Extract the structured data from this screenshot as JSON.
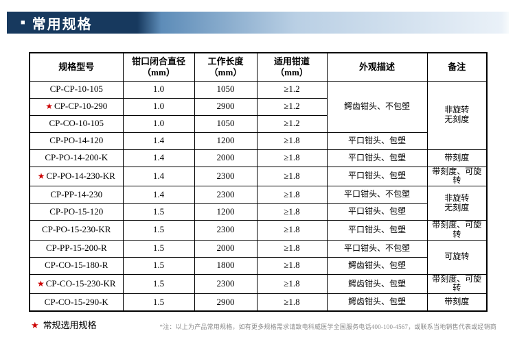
{
  "header": {
    "bullet": "■",
    "title": "常用规格"
  },
  "table": {
    "headers": [
      {
        "lines": [
          "规格型号"
        ]
      },
      {
        "lines": [
          "钳口闭合直径",
          "（mm）"
        ]
      },
      {
        "lines": [
          "工作长度",
          "（mm）"
        ]
      },
      {
        "lines": [
          "适用钳道",
          "（mm）"
        ]
      },
      {
        "lines": [
          "外观描述"
        ]
      },
      {
        "lines": [
          "备注"
        ]
      }
    ],
    "rows": [
      {
        "model": "CP-CP-10-105",
        "starred": false,
        "diameter": "1.0",
        "length": "1050",
        "channel": "≥1.2",
        "appearance": {
          "text": "鳄齿钳头、不包塑",
          "rowspan": 3
        },
        "remark": {
          "lines": [
            "非旋转",
            "无刻度"
          ],
          "rowspan": 4
        }
      },
      {
        "model": "CP-CP-10-290",
        "starred": true,
        "diameter": "1.0",
        "length": "2900",
        "channel": "≥1.2"
      },
      {
        "model": "CP-CO-10-105",
        "starred": false,
        "diameter": "1.0",
        "length": "1050",
        "channel": "≥1.2"
      },
      {
        "model": "CP-PO-14-120",
        "starred": false,
        "diameter": "1.4",
        "length": "1200",
        "channel": "≥1.8",
        "appearance": {
          "text": "平口钳头、包塑",
          "rowspan": 1
        }
      },
      {
        "model": "CP-PO-14-200-K",
        "starred": false,
        "diameter": "1.4",
        "length": "2000",
        "channel": "≥1.8",
        "appearance": {
          "text": "平口钳头、包塑",
          "rowspan": 1
        },
        "remark": {
          "lines": [
            "带刻度"
          ],
          "rowspan": 1
        }
      },
      {
        "model": "CP-PO-14-230-KR",
        "starred": true,
        "diameter": "1.4",
        "length": "2300",
        "channel": "≥1.8",
        "appearance": {
          "text": "平口钳头、包塑",
          "rowspan": 1
        },
        "remark": {
          "lines": [
            "带刻度、可旋转"
          ],
          "rowspan": 1
        }
      },
      {
        "model": "CP-PP-14-230",
        "starred": false,
        "diameter": "1.4",
        "length": "2300",
        "channel": "≥1.8",
        "appearance": {
          "text": "平口钳头、不包塑",
          "rowspan": 1
        },
        "remark": {
          "lines": [
            "非旋转",
            "无刻度"
          ],
          "rowspan": 2
        }
      },
      {
        "model": "CP-PO-15-120",
        "starred": false,
        "diameter": "1.5",
        "length": "1200",
        "channel": "≥1.8",
        "appearance": {
          "text": "平口钳头、包塑",
          "rowspan": 1
        }
      },
      {
        "model": "CP-PO-15-230-KR",
        "starred": false,
        "diameter": "1.5",
        "length": "2300",
        "channel": "≥1.8",
        "appearance": {
          "text": "平口钳头、包塑",
          "rowspan": 1
        },
        "remark": {
          "lines": [
            "带刻度、可旋转"
          ],
          "rowspan": 1
        }
      },
      {
        "model": "CP-PP-15-200-R",
        "starred": false,
        "diameter": "1.5",
        "length": "2000",
        "channel": "≥1.8",
        "appearance": {
          "text": "平口钳头、不包塑",
          "rowspan": 1
        },
        "remark": {
          "lines": [
            "可旋转"
          ],
          "rowspan": 2
        }
      },
      {
        "model": "CP-CO-15-180-R",
        "starred": false,
        "diameter": "1.5",
        "length": "1800",
        "channel": "≥1.8",
        "appearance": {
          "text": "鳄齿钳头、包塑",
          "rowspan": 1
        }
      },
      {
        "model": "CP-CO-15-230-KR",
        "starred": true,
        "diameter": "1.5",
        "length": "2300",
        "channel": "≥1.8",
        "appearance": {
          "text": "鳄齿钳头、包塑",
          "rowspan": 1
        },
        "remark": {
          "lines": [
            "带刻度、可旋转"
          ],
          "rowspan": 1
        }
      },
      {
        "model": "CP-CO-15-290-K",
        "starred": false,
        "diameter": "1.5",
        "length": "2900",
        "channel": "≥1.8",
        "appearance": {
          "text": "鳄齿钳头、包塑",
          "rowspan": 1
        },
        "remark": {
          "lines": [
            "带刻度"
          ],
          "rowspan": 1
        }
      }
    ]
  },
  "footer": {
    "star": "★",
    "legend": "常规选用规格",
    "note": "*注：以上为产品常用规格，如有更多规格需求请致电科威医学全国服务电话400-100-4567，或联系当地销售代表或经销商"
  },
  "colors": {
    "title_bar_dark": "#17395e",
    "title_bar_light": "#eaf1f8",
    "star_red": "#cc0000",
    "border": "#000000",
    "note_gray": "#8a8a8a"
  }
}
